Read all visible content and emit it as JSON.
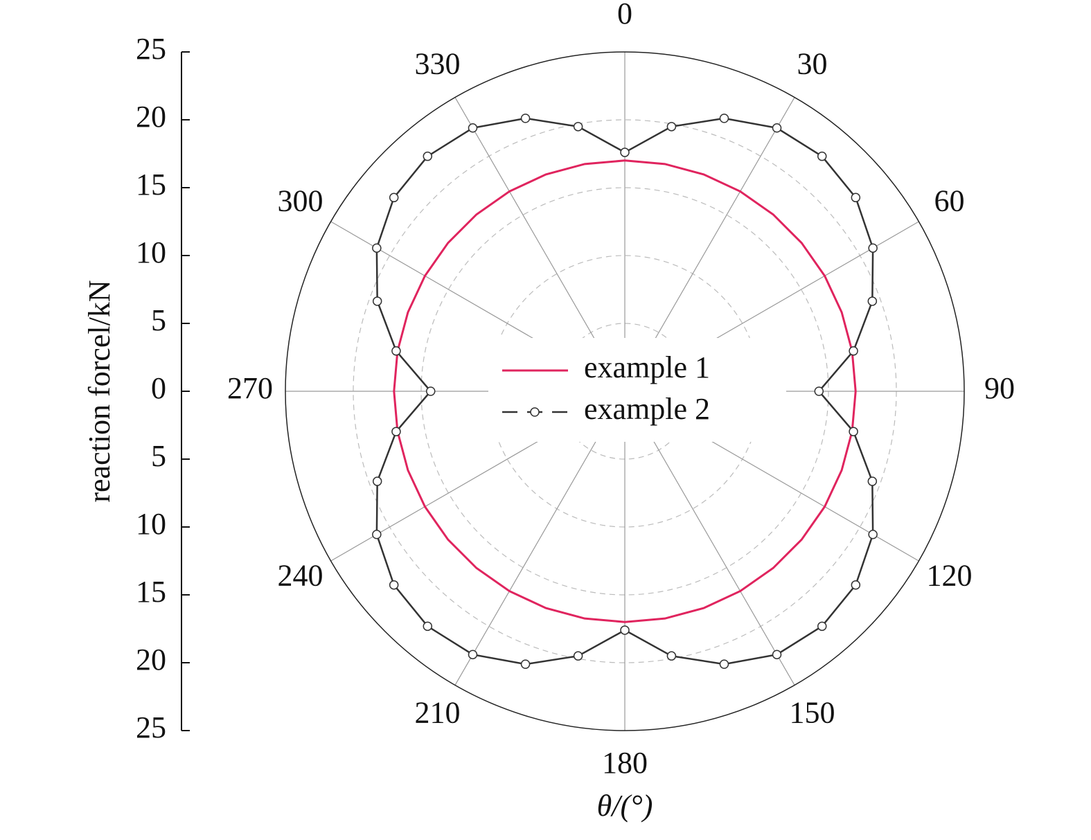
{
  "chart_data": {
    "type": "polar",
    "xlabel": "θ/(°)",
    "ylabel": "reaction forcel/kN",
    "x": [
      0,
      10,
      20,
      30,
      40,
      50,
      60,
      70,
      80,
      90,
      100,
      110,
      120,
      130,
      140,
      150,
      160,
      170,
      180,
      190,
      200,
      210,
      220,
      230,
      240,
      250,
      260,
      270,
      280,
      290,
      300,
      310,
      320,
      330,
      340,
      350
    ],
    "xticks": [
      0,
      30,
      60,
      90,
      120,
      150,
      180,
      210,
      240,
      270,
      300,
      330
    ],
    "ylim": [
      -25,
      25
    ],
    "yticks": [
      {
        "value": -25,
        "label": "25"
      },
      {
        "value": -20,
        "label": "20"
      },
      {
        "value": -15,
        "label": "15"
      },
      {
        "value": -10,
        "label": "10"
      },
      {
        "value": -5,
        "label": "5"
      },
      0,
      5,
      10,
      15,
      20,
      25
    ],
    "grid": true,
    "series": [
      {
        "name": "example 1",
        "color": "#e0245e",
        "marker": false,
        "values": [
          17,
          17,
          17,
          17,
          17,
          17,
          17,
          17,
          17,
          17,
          17,
          17,
          17,
          17,
          17,
          17,
          17,
          17,
          17,
          17,
          17,
          17,
          17,
          17,
          17,
          17,
          17,
          17,
          17,
          17,
          17,
          17,
          17,
          17,
          17,
          17
        ]
      },
      {
        "name": "example 2",
        "color": "#333333",
        "marker": true,
        "values": [
          17.6,
          19.8,
          21.4,
          22.4,
          22.6,
          22.2,
          21.1,
          19.4,
          17.1,
          14.3,
          17.1,
          19.4,
          21.1,
          22.2,
          22.6,
          22.4,
          21.4,
          19.8,
          17.6,
          19.8,
          21.4,
          22.4,
          22.6,
          22.2,
          21.1,
          19.4,
          17.1,
          14.3,
          17.1,
          19.4,
          21.1,
          22.2,
          22.6,
          22.4,
          21.4,
          19.8
        ]
      }
    ]
  }
}
